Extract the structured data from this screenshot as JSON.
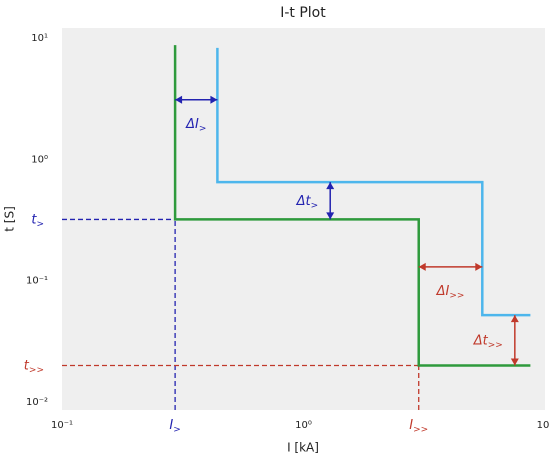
{
  "chart_data": {
    "type": "line",
    "title": "I-t Plot",
    "x_label": "I [kA]",
    "y_label": "t [S]",
    "log_x": true,
    "log_y": true,
    "grid": false,
    "xlim": [
      0.1,
      10
    ],
    "ylim": [
      0.0086,
      12.1
    ],
    "xticks": [
      {
        "value": 0.1,
        "label": "10⁻¹"
      },
      {
        "value": 1,
        "label": "10⁰"
      },
      {
        "value": 10,
        "label": "10¹"
      }
    ],
    "yticks": [
      {
        "value": 0.01,
        "label": "10⁻²"
      },
      {
        "value": 0.1,
        "label": "10⁻¹"
      },
      {
        "value": 1,
        "label": "10⁰"
      },
      {
        "value": 10,
        "label": "10¹"
      }
    ],
    "series": [
      {
        "color": "#2e9a3c",
        "x": [
          0.294,
          0.294,
          3.0,
          3.0,
          8.7
        ],
        "y": [
          8.75,
          0.32,
          0.32,
          0.02,
          0.02
        ]
      },
      {
        "color": "#4db6ec",
        "x": [
          0.44,
          0.44,
          5.5,
          5.5,
          8.7
        ],
        "y": [
          8.3,
          0.65,
          0.65,
          0.052,
          0.052
        ]
      }
    ],
    "reference_lines": [
      {
        "symbol": "t",
        "sub": ">",
        "color": "#2323b0",
        "y": 0.32,
        "x_end": 0.294
      },
      {
        "symbol": "I",
        "sub": ">",
        "color": "#2323b0",
        "x": 0.294,
        "y_end": 0.32
      },
      {
        "symbol": "t",
        "sub": ">>",
        "color": "#c0392b",
        "y": 0.02,
        "x_end": 3.0
      },
      {
        "symbol": "I",
        "sub": ">>",
        "color": "#c0392b",
        "x": 3.0,
        "y_end": 0.02
      }
    ],
    "annotations": [
      {
        "symbol": "ΔI",
        "sub": ">",
        "color": "#2323b0",
        "x": [
          0.294,
          0.44
        ],
        "y": 3.1
      },
      {
        "symbol": "Δt",
        "sub": ">",
        "color": "#2323b0",
        "x": 1.29,
        "y": [
          0.32,
          0.65
        ]
      },
      {
        "symbol": "ΔI",
        "sub": ">>",
        "color": "#c0392b",
        "x": [
          3.0,
          5.5
        ],
        "y": 0.13
      },
      {
        "symbol": "Δt",
        "sub": ">>",
        "color": "#c0392b",
        "x": 7.5,
        "y": [
          0.02,
          0.052
        ]
      }
    ]
  }
}
